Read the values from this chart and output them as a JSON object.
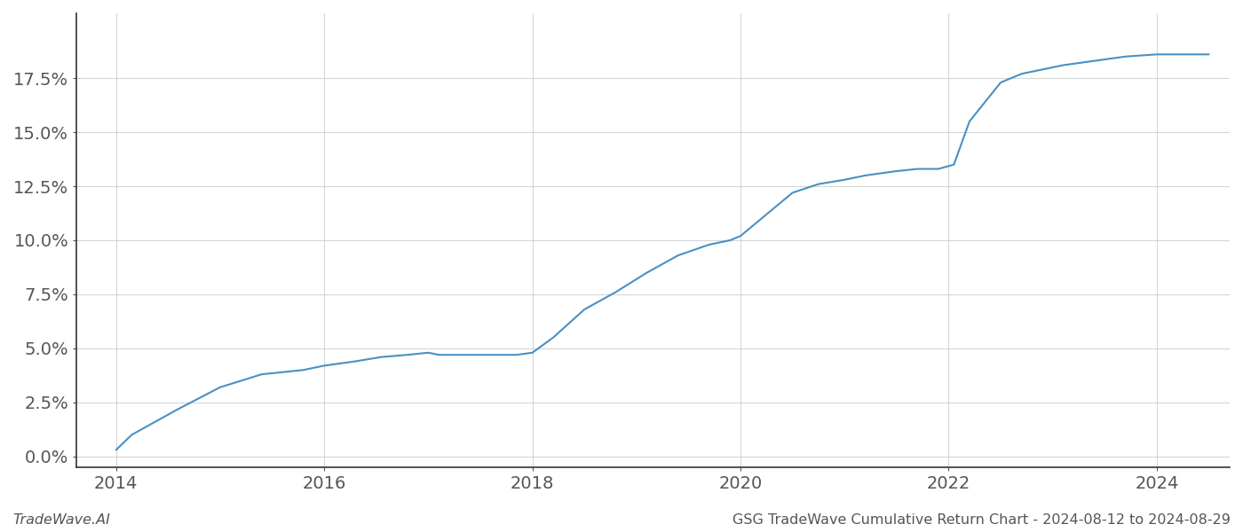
{
  "x_values": [
    2014.0,
    2014.15,
    2014.6,
    2015.0,
    2015.4,
    2015.8,
    2016.0,
    2016.3,
    2016.55,
    2016.8,
    2017.0,
    2017.1,
    2017.3,
    2017.6,
    2017.85,
    2018.0,
    2018.2,
    2018.5,
    2018.8,
    2019.1,
    2019.4,
    2019.7,
    2019.9,
    2020.0,
    2020.2,
    2020.5,
    2020.75,
    2021.0,
    2021.2,
    2021.5,
    2021.7,
    2021.9,
    2022.05,
    2022.2,
    2022.5,
    2022.7,
    2022.9,
    2023.1,
    2023.4,
    2023.7,
    2024.0,
    2024.3,
    2024.5
  ],
  "y_values": [
    0.003,
    0.01,
    0.022,
    0.032,
    0.038,
    0.04,
    0.042,
    0.044,
    0.046,
    0.047,
    0.048,
    0.047,
    0.047,
    0.047,
    0.047,
    0.048,
    0.055,
    0.068,
    0.076,
    0.085,
    0.093,
    0.098,
    0.1,
    0.102,
    0.11,
    0.122,
    0.126,
    0.128,
    0.13,
    0.132,
    0.133,
    0.133,
    0.135,
    0.155,
    0.173,
    0.177,
    0.179,
    0.181,
    0.183,
    0.185,
    0.186,
    0.186,
    0.186
  ],
  "line_color": "#4a90c4",
  "line_width": 1.5,
  "background_color": "#ffffff",
  "grid_color": "#cccccc",
  "grid_alpha": 0.8,
  "xlabel": "",
  "ylabel": "",
  "xticks": [
    2014,
    2016,
    2018,
    2020,
    2022,
    2024
  ],
  "yticks": [
    0.0,
    0.025,
    0.05,
    0.075,
    0.1,
    0.125,
    0.15,
    0.175
  ],
  "xlim": [
    2013.62,
    2024.7
  ],
  "ylim": [
    -0.005,
    0.205
  ],
  "footer_left": "TradeWave.AI",
  "footer_right": "GSG TradeWave Cumulative Return Chart - 2024-08-12 to 2024-08-29",
  "footer_fontsize": 11.5,
  "tick_fontsize": 14,
  "spine_color": "#333333",
  "left_spine_color": "#333333"
}
